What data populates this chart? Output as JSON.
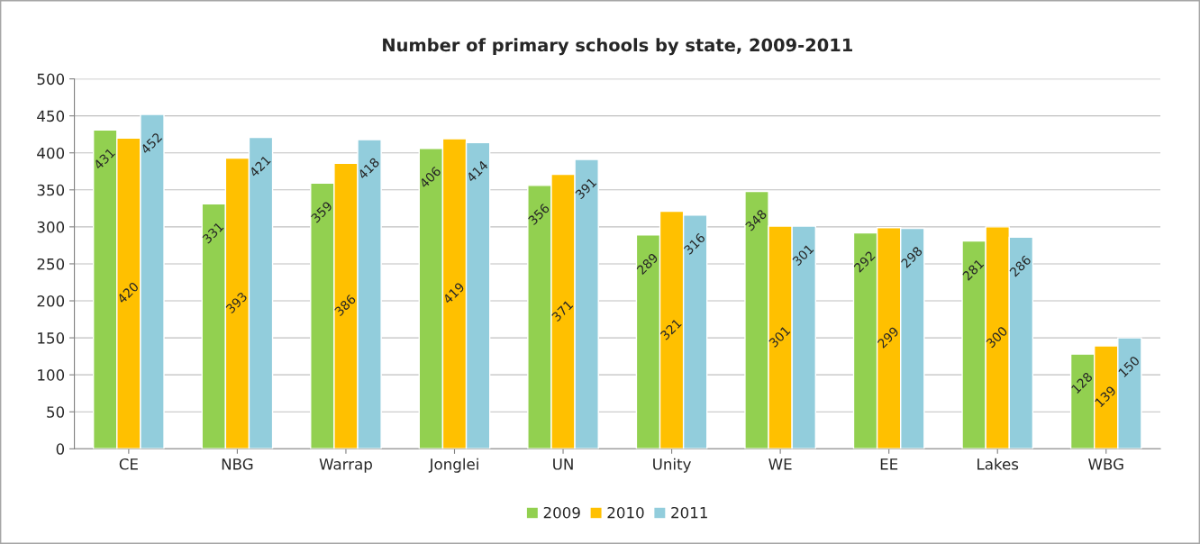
{
  "chart_data": {
    "type": "bar",
    "title": "Number of primary schools by state, 2009-2011",
    "categories": [
      "CE",
      "NBG",
      "Warrap",
      "Jonglei",
      "UN",
      "Unity",
      "WE",
      "EE",
      "Lakes",
      "WBG"
    ],
    "series": [
      {
        "name": "2009",
        "color": "#92d050",
        "values": [
          431,
          331,
          359,
          406,
          356,
          289,
          348,
          292,
          281,
          128
        ]
      },
      {
        "name": "2010",
        "color": "#ffc000",
        "values": [
          420,
          393,
          386,
          419,
          371,
          321,
          301,
          299,
          300,
          139
        ]
      },
      {
        "name": "2011",
        "color": "#92cddc",
        "values": [
          452,
          421,
          418,
          414,
          391,
          316,
          301,
          298,
          286,
          150
        ]
      }
    ],
    "ylim": [
      0,
      500
    ],
    "yticks": [
      0,
      50,
      100,
      150,
      200,
      250,
      300,
      350,
      400,
      450,
      500
    ],
    "grid": "y",
    "legend": "bottom",
    "data_labels": true
  }
}
